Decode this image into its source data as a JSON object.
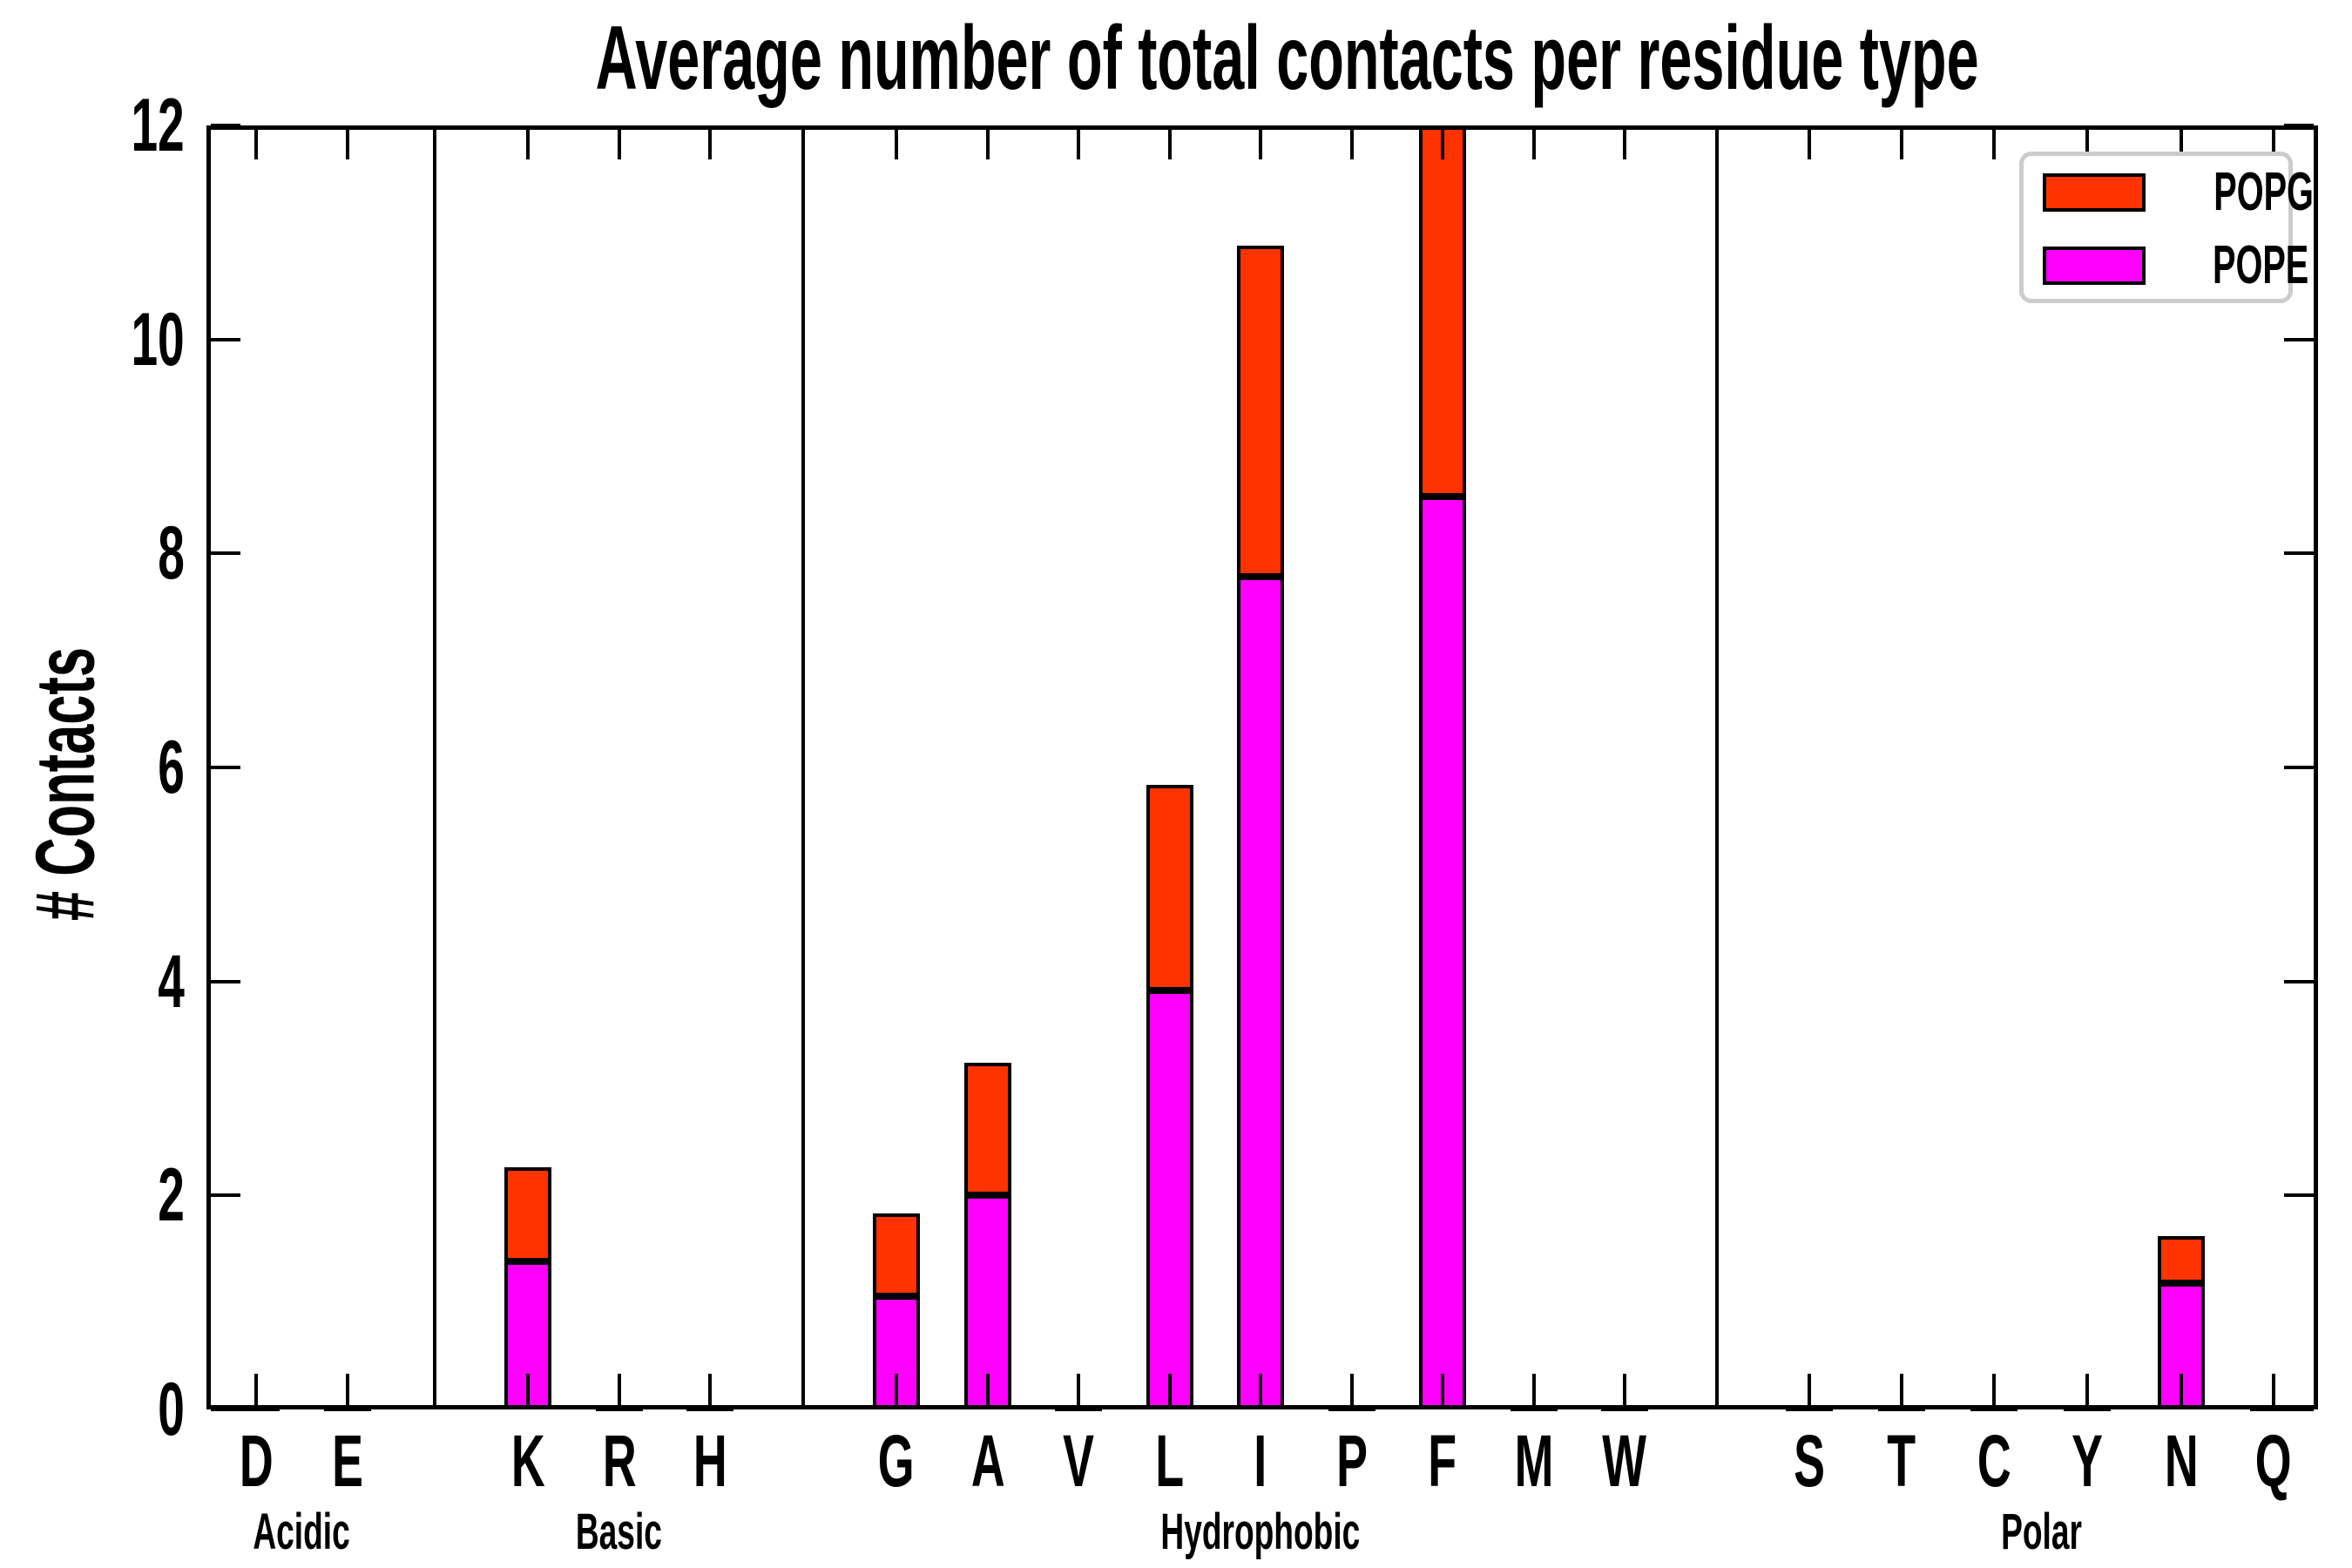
{
  "title": "Average number of total contacts per residue type",
  "ylabel": "# Contacts",
  "legend": {
    "items": [
      {
        "label": "POPG",
        "color": "#ff3300"
      },
      {
        "label": "POPE",
        "color": "#ff00ff"
      }
    ]
  },
  "axis": {
    "yticks": [
      "0",
      "2",
      "4",
      "6",
      "8",
      "10",
      "12"
    ]
  },
  "chart_data": {
    "type": "bar",
    "stacked": true,
    "title": "Average number of total contacts per residue type",
    "ylabel": "# Contacts",
    "ylim": [
      0,
      12
    ],
    "grid": false,
    "legend_position": "upper right",
    "categories": [
      "D",
      "E",
      "K",
      "R",
      "H",
      "G",
      "A",
      "V",
      "L",
      "I",
      "P",
      "F",
      "M",
      "W",
      "S",
      "T",
      "C",
      "Y",
      "N",
      "Q"
    ],
    "groups": [
      {
        "label": "Acidic",
        "members": [
          "D",
          "E"
        ]
      },
      {
        "label": "Basic",
        "members": [
          "K",
          "R",
          "H"
        ]
      },
      {
        "label": "Hydrophobic",
        "members": [
          "G",
          "A",
          "V",
          "L",
          "I",
          "P",
          "F",
          "M",
          "W"
        ]
      },
      {
        "label": "Polar",
        "members": [
          "S",
          "T",
          "C",
          "Y",
          "N",
          "Q"
        ]
      }
    ],
    "series": [
      {
        "name": "POPE",
        "color": "#ff00ff",
        "values": [
          0.02,
          0.02,
          1.38,
          0.02,
          0.02,
          1.06,
          2.0,
          0.02,
          3.92,
          7.78,
          0.02,
          8.53,
          0.02,
          0.02,
          0.02,
          0.02,
          0.02,
          0.02,
          1.18,
          0.02
        ]
      },
      {
        "name": "POPG",
        "color": "#ff3300",
        "values": [
          0.01,
          0.01,
          0.88,
          0.01,
          0.01,
          0.77,
          1.24,
          0.01,
          1.92,
          3.1,
          0.01,
          3.47,
          0.01,
          0.01,
          0.01,
          0.01,
          0.01,
          0.01,
          0.44,
          0.01
        ]
      }
    ],
    "note": "F bar is clipped at the axis maximum of 12 (POPE 8.53 + POPG 3.47)"
  }
}
